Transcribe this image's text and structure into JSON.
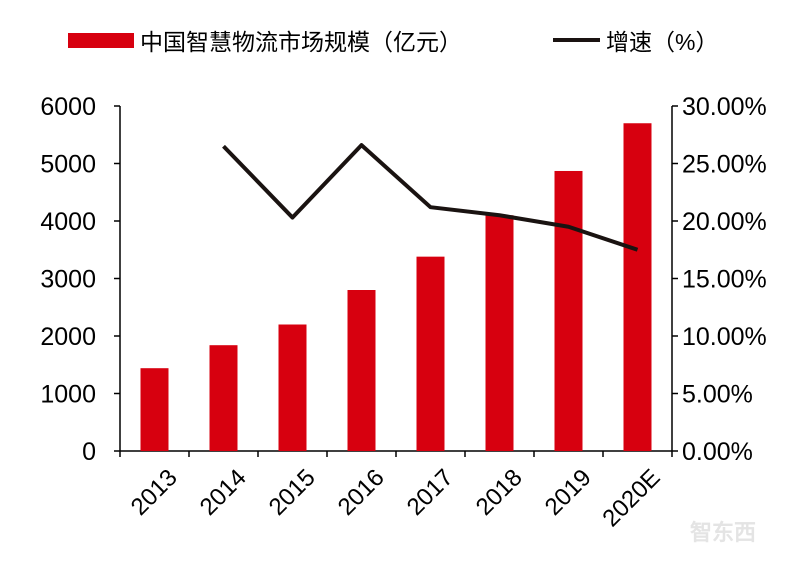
{
  "chart_data": {
    "type": "bar+line",
    "categories": [
      "2013",
      "2014",
      "2015",
      "2016",
      "2017",
      "2018",
      "2019",
      "2020E"
    ],
    "series": [
      {
        "name": "中国智慧物流市场规模（亿元）",
        "type": "bar",
        "axis": "left",
        "color": "#d7000f",
        "values": [
          1440,
          1840,
          2200,
          2800,
          3380,
          4100,
          4870,
          5700
        ]
      },
      {
        "name": "增速（%）",
        "type": "line",
        "axis": "right",
        "color": "#1a1311",
        "values": [
          null,
          26.5,
          20.3,
          26.6,
          21.2,
          20.5,
          19.5,
          17.5
        ]
      }
    ],
    "left_axis": {
      "ylim": [
        0,
        6000
      ],
      "ticks": [
        "0",
        "1000",
        "2000",
        "3000",
        "4000",
        "5000",
        "6000"
      ]
    },
    "right_axis": {
      "ylim": [
        0,
        30
      ],
      "ticks": [
        "0.00%",
        "5.00%",
        "10.00%",
        "15.00%",
        "20.00%",
        "25.00%",
        "30.00%"
      ]
    },
    "legend_position": "top",
    "grid": false
  },
  "watermark": "智东西"
}
